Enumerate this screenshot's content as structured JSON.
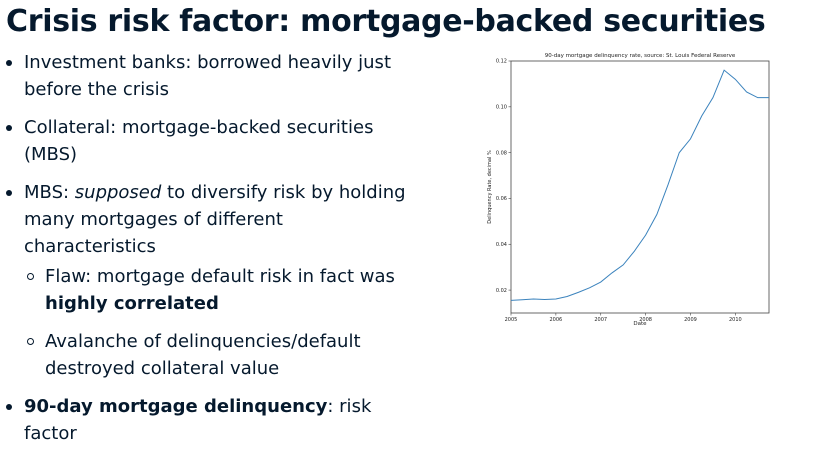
{
  "slide": {
    "title": "Crisis risk factor: mortgage-backed securities"
  },
  "bullets": {
    "b1": {
      "text": "Investment banks: borrowed heavily just before the crisis"
    },
    "b2": {
      "text": "Collateral: mortgage-backed securities (MBS)"
    },
    "b3": {
      "prefix": "MBS: ",
      "emph": "supposed",
      "suffix": " to diversify risk by holding many mortgages of different characteristics",
      "sub1": {
        "text": "Flaw: mortgage default risk in fact was ",
        "bold": "highly correlated"
      },
      "sub2": {
        "text": "Avalanche of delinquencies/default destroyed collateral value"
      }
    },
    "b4": {
      "bold": "90-day mortgage delinquency",
      "text": ": risk factor"
    }
  },
  "chart_data": {
    "type": "line",
    "title": "90-day mortgage delinquency rate, source: St. Louis Federal Reserve",
    "xlabel": "Date",
    "ylabel": "Delinquency Rate, decimal %",
    "x_ticks": [
      "2005",
      "2006",
      "2007",
      "2008",
      "2009",
      "2010"
    ],
    "y_ticks": [
      "0.02",
      "0.04",
      "0.06",
      "0.08",
      "0.10",
      "0.12"
    ],
    "xlim": [
      2005.0,
      2010.75
    ],
    "ylim": [
      0.01,
      0.12
    ],
    "grid": false,
    "line_color": "#3b83bd",
    "series": [
      {
        "x": [
          2005.0,
          2005.25,
          2005.5,
          2005.75,
          2006.0,
          2006.25,
          2006.5,
          2006.75,
          2007.0,
          2007.25,
          2007.5,
          2007.75,
          2008.0,
          2008.25,
          2008.5,
          2008.75,
          2009.0,
          2009.25,
          2009.5,
          2009.75,
          2010.0,
          2010.25,
          2010.5,
          2010.75
        ],
        "values": [
          0.0155,
          0.0158,
          0.0161,
          0.0159,
          0.0161,
          0.0172,
          0.019,
          0.021,
          0.0235,
          0.0275,
          0.031,
          0.037,
          0.044,
          0.053,
          0.066,
          0.08,
          0.086,
          0.096,
          0.104,
          0.116,
          0.112,
          0.1065,
          0.104,
          0.104
        ]
      }
    ]
  }
}
